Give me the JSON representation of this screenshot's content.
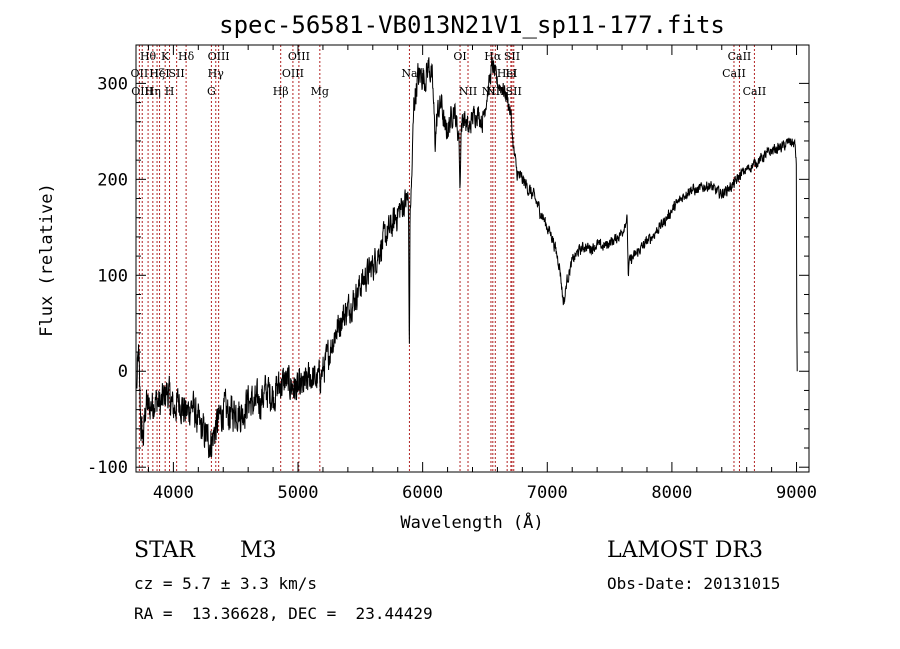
{
  "chart_data": {
    "type": "line",
    "title": "spec-56581-VB013N21V1_sp11-177.fits",
    "xlabel": "Wavelength (Å)",
    "ylabel": "Flux (relative)",
    "xlim": [
      3700,
      9100
    ],
    "ylim": [
      -105,
      340
    ],
    "xticks": [
      4000,
      5000,
      6000,
      7000,
      8000,
      9000
    ],
    "yticks": [
      -100,
      0,
      100,
      200,
      300
    ],
    "grid": false,
    "series": [
      {
        "color": "#000000",
        "noise": [
          [
            3700,
            28
          ],
          [
            4700,
            30
          ],
          [
            5400,
            24
          ],
          [
            5950,
            24
          ],
          [
            6800,
            12
          ],
          [
            7200,
            9
          ],
          [
            8000,
            9
          ],
          [
            9000,
            9
          ]
        ],
        "dips": [
          [
            5893,
            140,
            4
          ],
          [
            7130,
            25,
            20
          ],
          [
            7650,
            35,
            6
          ],
          [
            6300,
            60,
            5
          ]
        ],
        "points": [
          [
            3705,
            -20
          ],
          [
            3720,
            20
          ],
          [
            3740,
            -60
          ],
          [
            3760,
            -70
          ],
          [
            3780,
            -30
          ],
          [
            3800,
            -40
          ],
          [
            3850,
            -30
          ],
          [
            3900,
            -35
          ],
          [
            3950,
            -20
          ],
          [
            4000,
            -40
          ],
          [
            4050,
            -30
          ],
          [
            4100,
            -45
          ],
          [
            4150,
            -35
          ],
          [
            4200,
            -55
          ],
          [
            4250,
            -65
          ],
          [
            4300,
            -75
          ],
          [
            4350,
            -55
          ],
          [
            4400,
            -40
          ],
          [
            4450,
            -45
          ],
          [
            4500,
            -40
          ],
          [
            4550,
            -45
          ],
          [
            4600,
            -30
          ],
          [
            4650,
            -35
          ],
          [
            4700,
            -30
          ],
          [
            4750,
            -20
          ],
          [
            4800,
            -25
          ],
          [
            4850,
            -15
          ],
          [
            4900,
            -10
          ],
          [
            4950,
            -15
          ],
          [
            5000,
            -20
          ],
          [
            5050,
            -15
          ],
          [
            5100,
            -5
          ],
          [
            5150,
            -10
          ],
          [
            5200,
            0
          ],
          [
            5250,
            20
          ],
          [
            5300,
            40
          ],
          [
            5350,
            55
          ],
          [
            5400,
            65
          ],
          [
            5450,
            75
          ],
          [
            5500,
            90
          ],
          [
            5550,
            100
          ],
          [
            5600,
            110
          ],
          [
            5650,
            125
          ],
          [
            5700,
            140
          ],
          [
            5750,
            150
          ],
          [
            5800,
            165
          ],
          [
            5850,
            175
          ],
          [
            5880,
            180
          ],
          [
            5895,
            160
          ],
          [
            5910,
            190
          ],
          [
            5930,
            280
          ],
          [
            5960,
            305
          ],
          [
            5990,
            310
          ],
          [
            6020,
            305
          ],
          [
            6050,
            320
          ],
          [
            6080,
            300
          ],
          [
            6100,
            240
          ],
          [
            6120,
            270
          ],
          [
            6150,
            280
          ],
          [
            6180,
            250
          ],
          [
            6210,
            255
          ],
          [
            6250,
            275
          ],
          [
            6290,
            245
          ],
          [
            6330,
            265
          ],
          [
            6370,
            250
          ],
          [
            6400,
            265
          ],
          [
            6440,
            270
          ],
          [
            6480,
            260
          ],
          [
            6520,
            290
          ],
          [
            6560,
            320
          ],
          [
            6600,
            300
          ],
          [
            6640,
            295
          ],
          [
            6680,
            285
          ],
          [
            6710,
            265
          ],
          [
            6730,
            230
          ],
          [
            6760,
            205
          ],
          [
            6800,
            200
          ],
          [
            6850,
            190
          ],
          [
            6900,
            180
          ],
          [
            6950,
            165
          ],
          [
            7000,
            150
          ],
          [
            7040,
            140
          ],
          [
            7080,
            120
          ],
          [
            7110,
            105
          ],
          [
            7140,
            95
          ],
          [
            7170,
            100
          ],
          [
            7200,
            115
          ],
          [
            7250,
            125
          ],
          [
            7300,
            130
          ],
          [
            7350,
            128
          ],
          [
            7400,
            132
          ],
          [
            7450,
            130
          ],
          [
            7500,
            134
          ],
          [
            7550,
            138
          ],
          [
            7600,
            145
          ],
          [
            7640,
            160
          ],
          [
            7660,
            115
          ],
          [
            7700,
            120
          ],
          [
            7750,
            128
          ],
          [
            7800,
            135
          ],
          [
            7850,
            142
          ],
          [
            7900,
            150
          ],
          [
            7950,
            158
          ],
          [
            8000,
            168
          ],
          [
            8050,
            176
          ],
          [
            8100,
            184
          ],
          [
            8150,
            190
          ],
          [
            8200,
            188
          ],
          [
            8250,
            192
          ],
          [
            8300,
            194
          ],
          [
            8350,
            188
          ],
          [
            8400,
            185
          ],
          [
            8450,
            190
          ],
          [
            8500,
            195
          ],
          [
            8550,
            205
          ],
          [
            8600,
            210
          ],
          [
            8650,
            215
          ],
          [
            8700,
            220
          ],
          [
            8750,
            225
          ],
          [
            8800,
            230
          ],
          [
            8850,
            232
          ],
          [
            8900,
            235
          ],
          [
            8950,
            240
          ],
          [
            8990,
            235
          ],
          [
            9000,
            210
          ],
          [
            9002,
            50
          ],
          [
            9005,
            0
          ]
        ]
      }
    ],
    "line_markers": [
      {
        "wave": 3727,
        "label": "OII",
        "row": 2
      },
      {
        "wave": 3750,
        "label": "OIII",
        "row": 3
      },
      {
        "wave": 3797,
        "label": "Hθ",
        "row": 1
      },
      {
        "wave": 3835,
        "label": "Hη",
        "row": 3
      },
      {
        "wave": 3869,
        "label": "Hζ",
        "row": 2
      },
      {
        "wave": 3889,
        "label": "HeI",
        "row": 2
      },
      {
        "wave": 3934,
        "label": "K",
        "row": 1
      },
      {
        "wave": 3969,
        "label": "H",
        "row": 3
      },
      {
        "wave": 4026,
        "label": "SII",
        "row": 2
      },
      {
        "wave": 4102,
        "label": "Hδ",
        "row": 1
      },
      {
        "wave": 4305,
        "label": "G",
        "row": 3
      },
      {
        "wave": 4340,
        "label": "Hγ",
        "row": 2
      },
      {
        "wave": 4363,
        "label": "OIII",
        "row": 1
      },
      {
        "wave": 4861,
        "label": "Hβ",
        "row": 3
      },
      {
        "wave": 4959,
        "label": "OIII",
        "row": 2
      },
      {
        "wave": 5007,
        "label": "OIII",
        "row": 1
      },
      {
        "wave": 5175,
        "label": "Mg",
        "row": 3
      },
      {
        "wave": 5894,
        "label": "Na",
        "row": 2
      },
      {
        "wave": 6300,
        "label": "OI",
        "row": 1
      },
      {
        "wave": 6364,
        "label": "NII",
        "row": 3
      },
      {
        "wave": 6548,
        "label": "NII",
        "row": 3
      },
      {
        "wave": 6563,
        "label": "Hα",
        "row": 1
      },
      {
        "wave": 6583,
        "label": "NII",
        "row": 3
      },
      {
        "wave": 6678,
        "label": "HeI",
        "row": 2
      },
      {
        "wave": 6708,
        "label": "Li",
        "row": 2
      },
      {
        "wave": 6717,
        "label": "SII",
        "row": 1
      },
      {
        "wave": 6731,
        "label": "SII",
        "row": 3
      },
      {
        "wave": 8498,
        "label": "CaII",
        "row": 2
      },
      {
        "wave": 8542,
        "label": "CaII",
        "row": 1
      },
      {
        "wave": 8662,
        "label": "CaII",
        "row": 3
      }
    ]
  },
  "info": {
    "object_class": "STAR",
    "subclass": "M3",
    "velocity": "cz = 5.7 ± 3.3 km/s",
    "coords": "RA =  13.36628, DEC =  23.44429",
    "survey": "LAMOST DR3",
    "obs_date": "Obs-Date: 20131015"
  }
}
